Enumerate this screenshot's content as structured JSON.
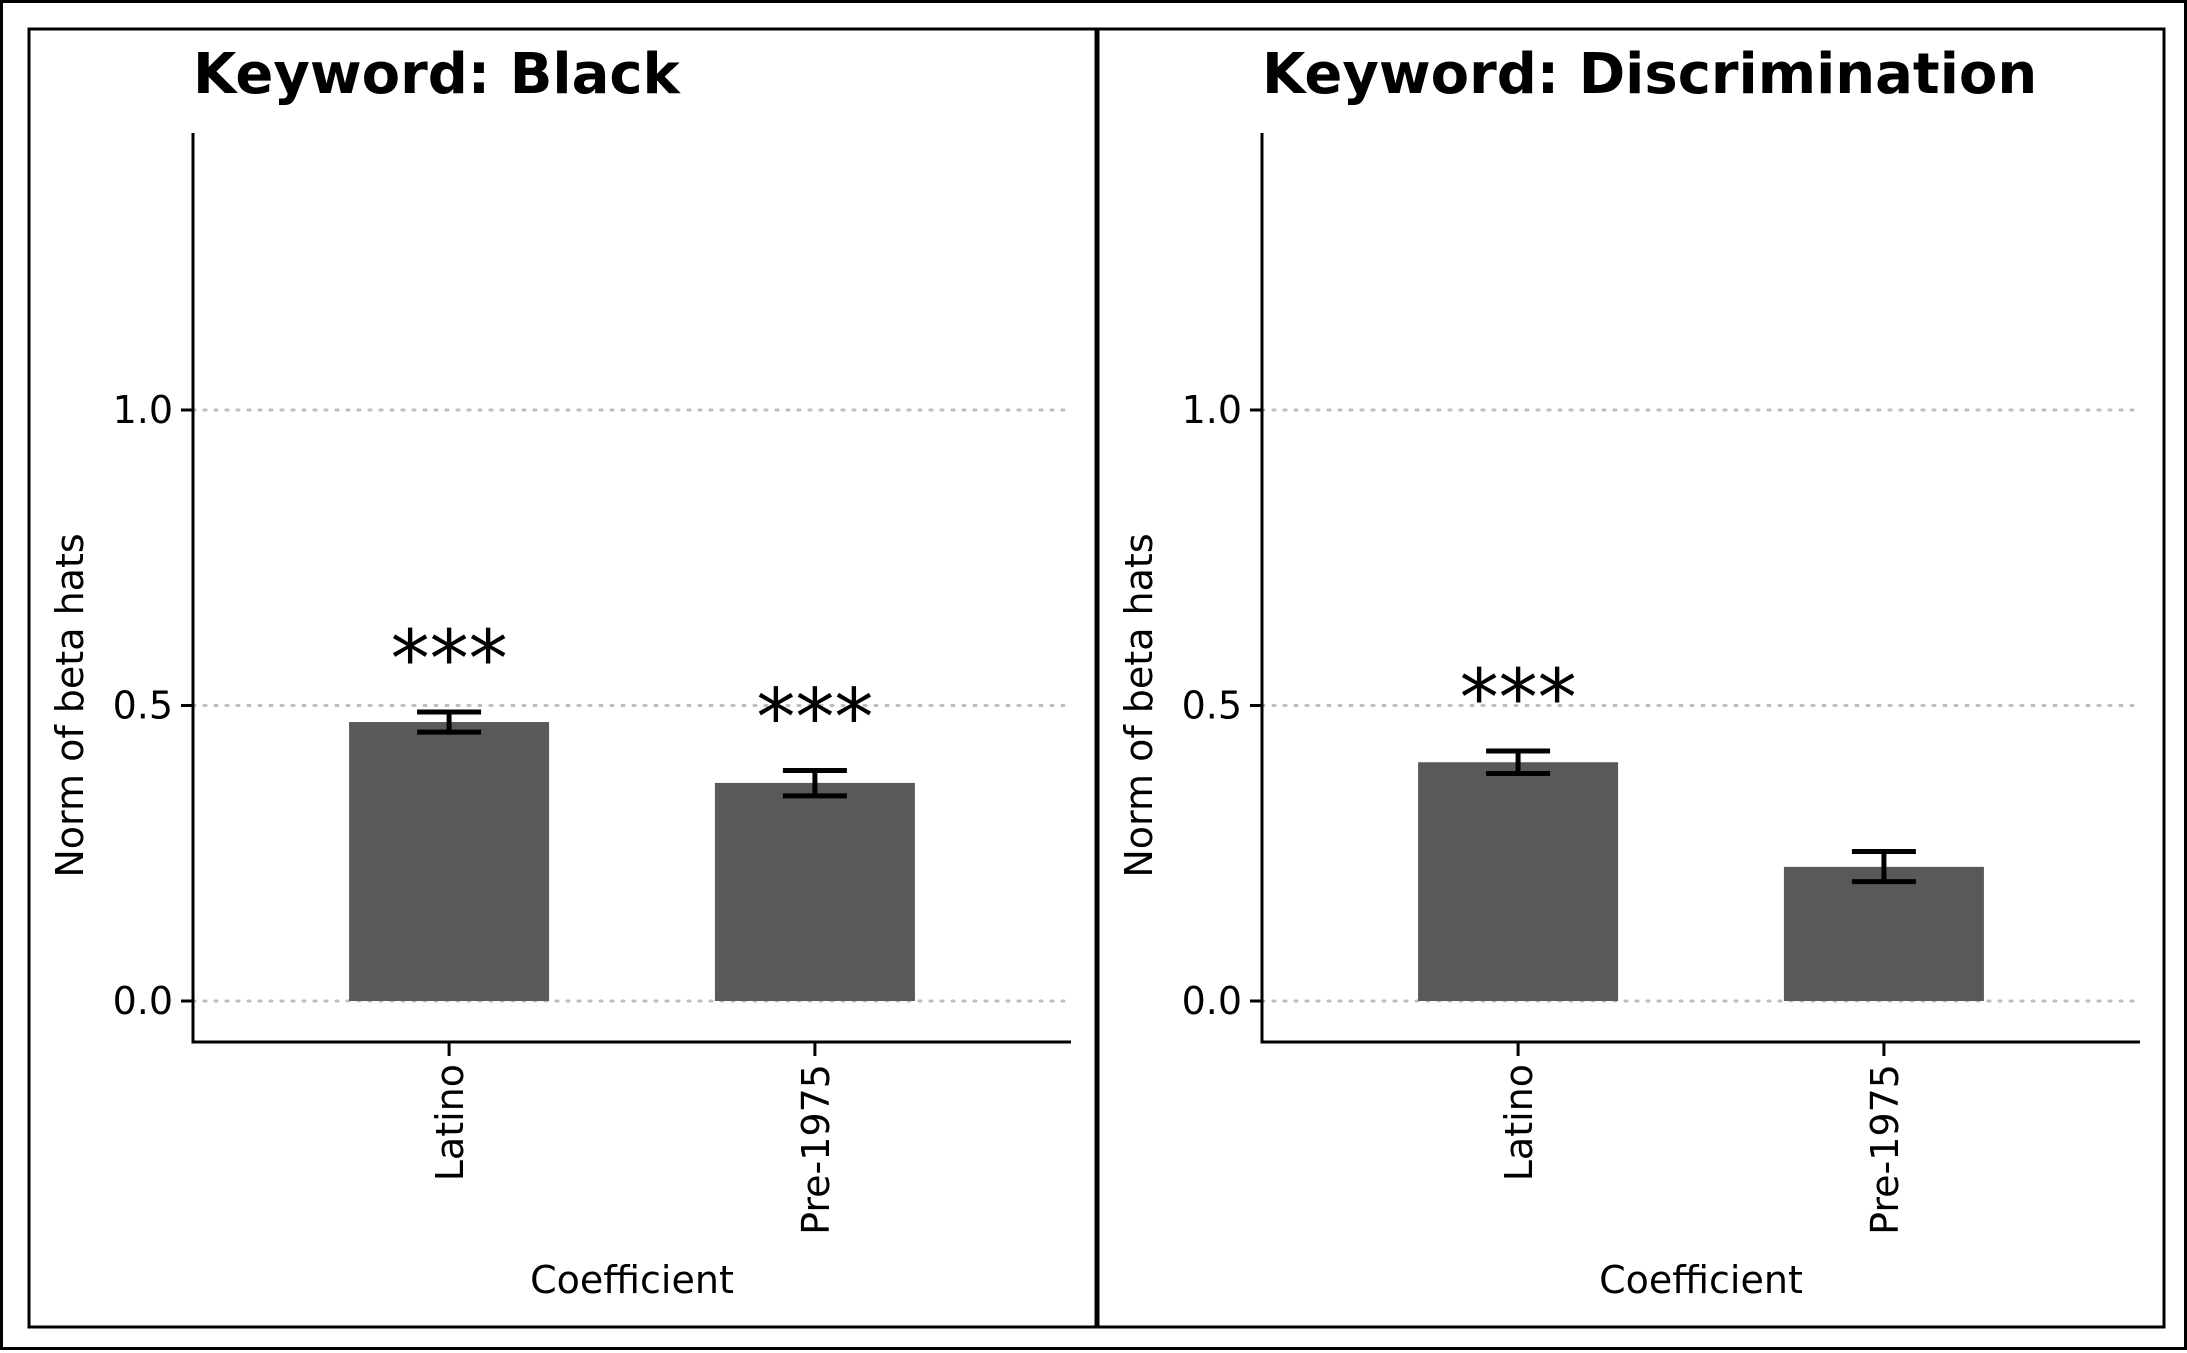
{
  "chart_data": [
    {
      "type": "bar",
      "title": "Keyword: Black",
      "xlabel": "Coefficient",
      "ylabel": "Norm of beta hats",
      "categories": [
        "Latino",
        "Pre-1975"
      ],
      "values": [
        0.472,
        0.369
      ],
      "error_bars": [
        {
          "low": 0.455,
          "high": 0.489
        },
        {
          "low": 0.347,
          "high": 0.39
        }
      ],
      "annotations": [
        "***",
        "***"
      ],
      "ylim": [
        -0.07,
        1.47
      ],
      "yticks": [
        0.0,
        0.5,
        1.0
      ],
      "ytick_labels": [
        "0.0",
        "0.5",
        "1.0"
      ],
      "grid": "horizontal-dotted",
      "bar_color": "#595959"
    },
    {
      "type": "bar",
      "title": "Keyword: Discrimination",
      "xlabel": "Coefficient",
      "ylabel": "Norm of beta hats",
      "categories": [
        "Latino",
        "Pre-1975"
      ],
      "values": [
        0.404,
        0.227
      ],
      "error_bars": [
        {
          "low": 0.385,
          "high": 0.423
        },
        {
          "low": 0.202,
          "high": 0.253
        }
      ],
      "annotations": [
        "***",
        ""
      ],
      "ylim": [
        -0.07,
        1.47
      ],
      "yticks": [
        0.0,
        0.5,
        1.0
      ],
      "ytick_labels": [
        "0.0",
        "0.5",
        "1.0"
      ],
      "grid": "horizontal-dotted",
      "bar_color": "#595959"
    }
  ]
}
